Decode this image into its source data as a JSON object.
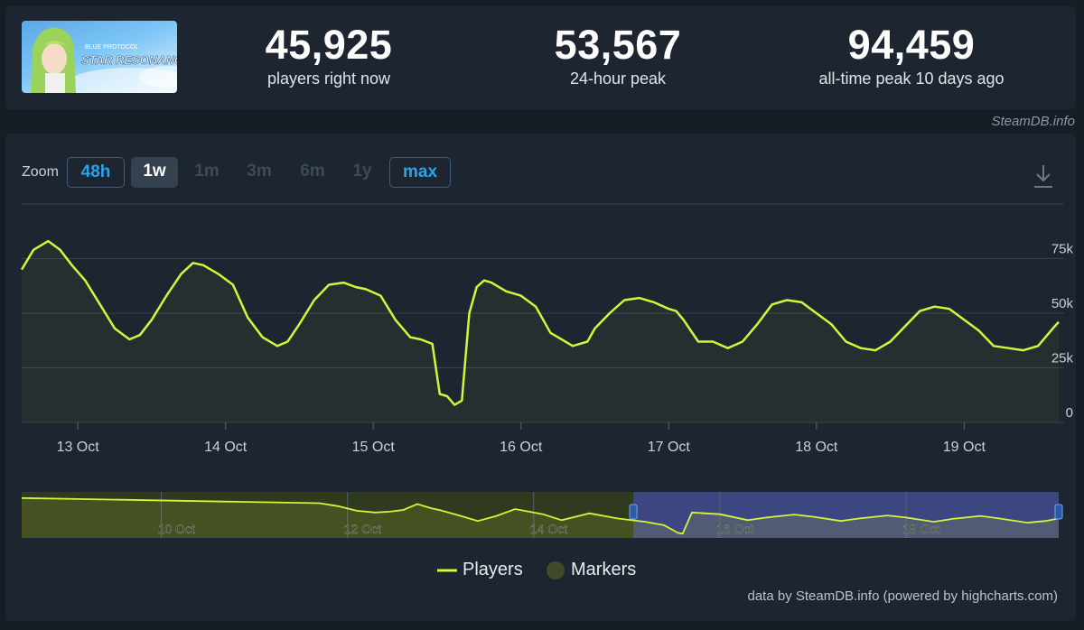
{
  "header": {
    "game_title": "STAR RESONANCE",
    "game_subtitle": "BLUE PROTOCOL",
    "stats": [
      {
        "value": "45,925",
        "label": "players right now"
      },
      {
        "value": "53,567",
        "label": "24-hour peak"
      },
      {
        "value": "94,459",
        "label": "all-time peak 10 days ago"
      }
    ],
    "credit": "SteamDB.info"
  },
  "zoom": {
    "label": "Zoom",
    "buttons": [
      {
        "label": "48h",
        "state": "outline"
      },
      {
        "label": "1w",
        "state": "selected"
      },
      {
        "label": "1m",
        "state": "disabled"
      },
      {
        "label": "3m",
        "state": "disabled"
      },
      {
        "label": "6m",
        "state": "disabled"
      },
      {
        "label": "1y",
        "state": "disabled"
      },
      {
        "label": "max",
        "state": "outline"
      }
    ],
    "download_icon": "download-icon"
  },
  "chart_data": {
    "type": "line",
    "series": [
      {
        "name": "Players",
        "color": "#d5f53a",
        "x": [
          12.62,
          12.7,
          12.8,
          12.88,
          12.96,
          13.05,
          13.15,
          13.25,
          13.35,
          13.42,
          13.5,
          13.6,
          13.7,
          13.78,
          13.85,
          13.95,
          14.05,
          14.15,
          14.25,
          14.35,
          14.42,
          14.5,
          14.6,
          14.7,
          14.8,
          14.88,
          14.95,
          15.05,
          15.15,
          15.25,
          15.32,
          15.4,
          15.45,
          15.5,
          15.55,
          15.6,
          15.65,
          15.7,
          15.75,
          15.8,
          15.9,
          16.0,
          16.1,
          16.2,
          16.25,
          16.35,
          16.45,
          16.5,
          16.6,
          16.7,
          16.8,
          16.9,
          17.0,
          17.05,
          17.1,
          17.2,
          17.3,
          17.4,
          17.5,
          17.6,
          17.7,
          17.8,
          17.9,
          18.0,
          18.1,
          18.2,
          18.3,
          18.4,
          18.5,
          18.6,
          18.7,
          18.8,
          18.9,
          19.0,
          19.1,
          19.2,
          19.3,
          19.4,
          19.5,
          19.6,
          19.64
        ],
        "y": [
          70000,
          79000,
          83000,
          79000,
          72000,
          65000,
          54000,
          43000,
          38000,
          40000,
          47000,
          58000,
          68000,
          73000,
          72000,
          68000,
          63000,
          48000,
          39000,
          35000,
          37000,
          45000,
          56000,
          63000,
          64000,
          62000,
          61000,
          58000,
          47000,
          39000,
          38000,
          36000,
          13000,
          12000,
          8000,
          10000,
          50000,
          62000,
          65000,
          64000,
          60000,
          58000,
          53000,
          41000,
          39000,
          35000,
          37000,
          43000,
          50000,
          56000,
          57000,
          55000,
          52000,
          51000,
          47000,
          37000,
          37000,
          34000,
          37000,
          45000,
          54000,
          56000,
          55000,
          50000,
          45000,
          37000,
          34000,
          33000,
          37000,
          44000,
          51000,
          53000,
          52000,
          47000,
          42000,
          35000,
          34000,
          33000,
          35000,
          43000,
          46000
        ]
      },
      {
        "name": "Markers",
        "color": "#3f4a2a"
      }
    ],
    "x_ticks": [
      {
        "value": 13,
        "label": "13 Oct"
      },
      {
        "value": 14,
        "label": "14 Oct"
      },
      {
        "value": 15,
        "label": "15 Oct"
      },
      {
        "value": 16,
        "label": "16 Oct"
      },
      {
        "value": 17,
        "label": "17 Oct"
      },
      {
        "value": 18,
        "label": "18 Oct"
      },
      {
        "value": 19,
        "label": "19 Oct"
      }
    ],
    "y_ticks": [
      {
        "value": 0,
        "label": "0"
      },
      {
        "value": 25000,
        "label": "25k"
      },
      {
        "value": 50000,
        "label": "50k"
      },
      {
        "value": 75000,
        "label": "75k"
      }
    ],
    "xlim": [
      12.62,
      19.64
    ],
    "ylim": [
      0,
      100000
    ],
    "grid": true,
    "navigator": {
      "xlim": [
        8.5,
        19.64
      ],
      "selected_range": [
        15.07,
        19.64
      ],
      "ticks": [
        {
          "value": 10,
          "label": "10 Oct"
        },
        {
          "value": 12,
          "label": "12 Oct"
        },
        {
          "value": 14,
          "label": "14 Oct"
        },
        {
          "value": 16,
          "label": "16 Oct"
        },
        {
          "value": 18,
          "label": "18 Oct"
        }
      ],
      "x": [
        8.5,
        11.7,
        11.9,
        12.1,
        12.3,
        12.45,
        12.6,
        12.75,
        12.9,
        13.0,
        13.2,
        13.4,
        13.6,
        13.8,
        14.1,
        14.3,
        14.6,
        14.9,
        15.2,
        15.4,
        15.5,
        15.55,
        15.6,
        15.7,
        16.0,
        16.3,
        16.5,
        16.8,
        17.0,
        17.3,
        17.5,
        17.8,
        18.0,
        18.3,
        18.5,
        18.8,
        19.0,
        19.3,
        19.5,
        19.64
      ],
      "y": [
        94000,
        82000,
        75000,
        64000,
        60000,
        62000,
        66000,
        80000,
        70000,
        65000,
        53000,
        40000,
        52000,
        68000,
        56000,
        42000,
        58000,
        46000,
        38000,
        30000,
        18000,
        12000,
        10000,
        60000,
        56000,
        42000,
        48000,
        55000,
        50000,
        40000,
        46000,
        53000,
        48000,
        38000,
        45000,
        52000,
        46000,
        36000,
        40000,
        46000
      ]
    }
  },
  "legend": [
    {
      "label": "Players",
      "icon": "line-swatch"
    },
    {
      "label": "Markers",
      "icon": "circle-swatch"
    }
  ],
  "footer_credit": "data by SteamDB.info (powered by highcharts.com)"
}
